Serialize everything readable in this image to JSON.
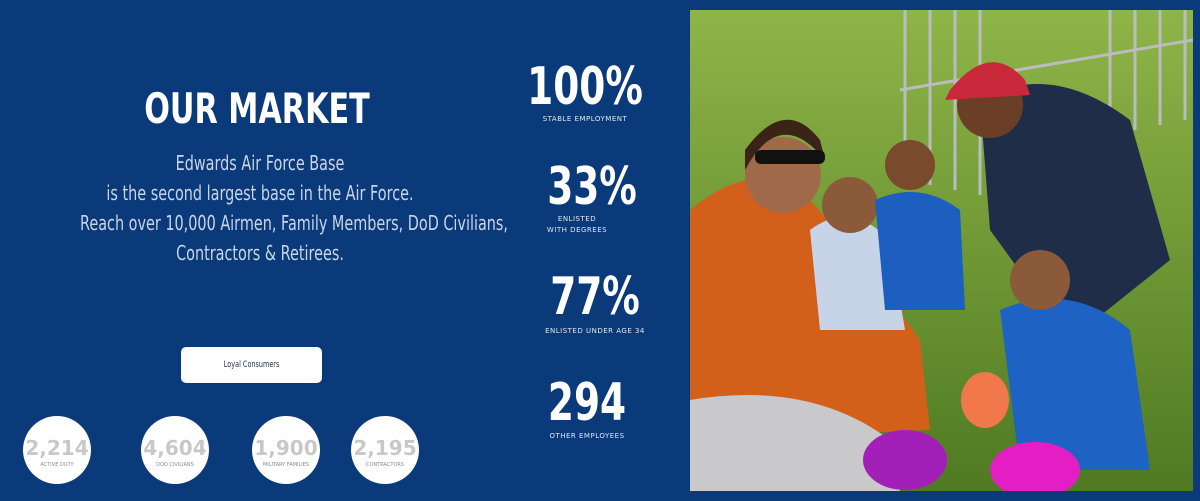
{
  "header": {
    "title": "OUR MARKET",
    "description": [
      "Edwards Air Force Base",
      "is the second largest base in the Air Force.",
      "Reach over 10,000 Airmen, Family Members, DoD Civilians,",
      "Contractors & Retirees."
    ]
  },
  "stats": [
    {
      "value": "100%",
      "label": [
        "STABLE EMPLOYMENT"
      ]
    },
    {
      "value": "33%",
      "label": [
        "ENLISTED",
        "WITH DEGREES"
      ]
    },
    {
      "value": "77%",
      "label": [
        "ENLISTED UNDER AGE 34"
      ]
    },
    {
      "value": "294",
      "label": [
        "OTHER EMPLOYEES"
      ]
    }
  ],
  "button": {
    "label": "Loyal Consumers"
  },
  "circles": [
    {
      "value": "2,214",
      "label": "ACTIVE DUTY"
    },
    {
      "value": "4,604",
      "label": "DOD CIVILIANS"
    },
    {
      "value": "1,900",
      "label": "MILITARY FAMILIES"
    },
    {
      "value": "2,195",
      "label": "CONTRACTORS"
    }
  ]
}
